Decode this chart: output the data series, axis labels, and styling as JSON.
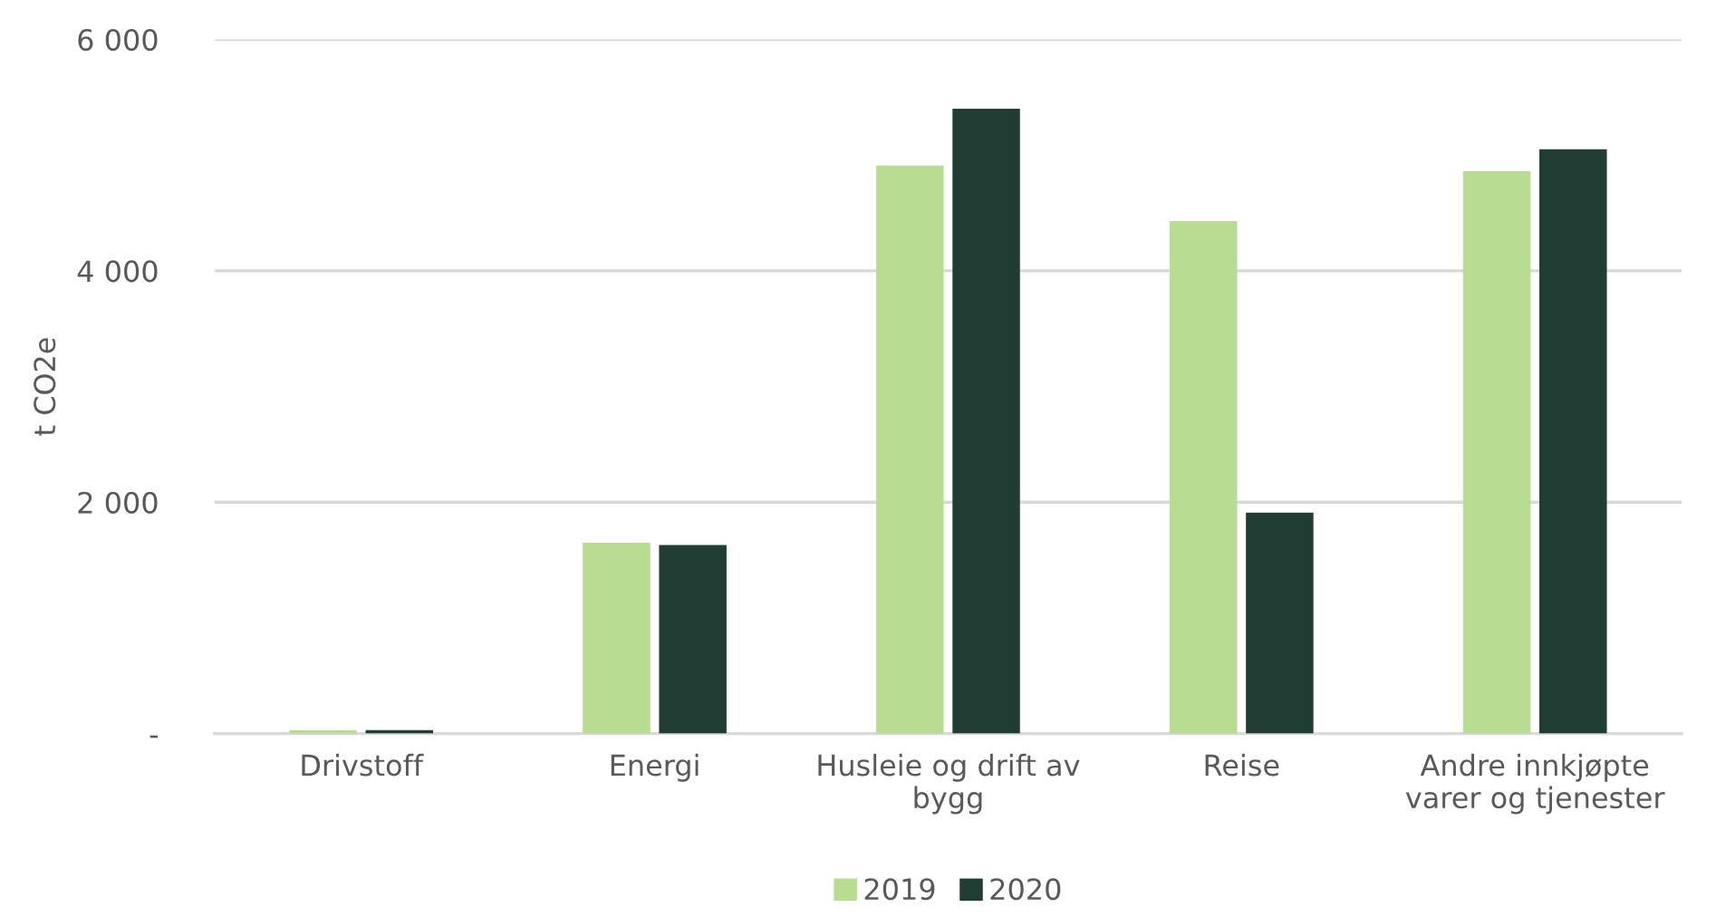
{
  "chart_data": {
    "type": "bar",
    "ylabel": "t CO2e",
    "categories": [
      "Drivstoff",
      "Energi",
      "Husleie og drift av\nbygg",
      "Reise",
      "Andre innkjøpte\nvarer og tjenester"
    ],
    "series": [
      {
        "name": "2019",
        "color": "#b8dc90",
        "values": [
          30,
          1650,
          4910,
          4430,
          4860
        ]
      },
      {
        "name": "2020",
        "color": "#1f3d33",
        "values": [
          30,
          1630,
          5400,
          1910,
          5050
        ]
      }
    ],
    "ylim": [
      0,
      6000
    ],
    "yticks": [
      {
        "value": 0,
        "label": "-"
      },
      {
        "value": 2000,
        "label": "2 000"
      },
      {
        "value": 4000,
        "label": "4 000"
      },
      {
        "value": 6000,
        "label": "6 000"
      }
    ],
    "grid": "y",
    "legend": "bottom"
  }
}
